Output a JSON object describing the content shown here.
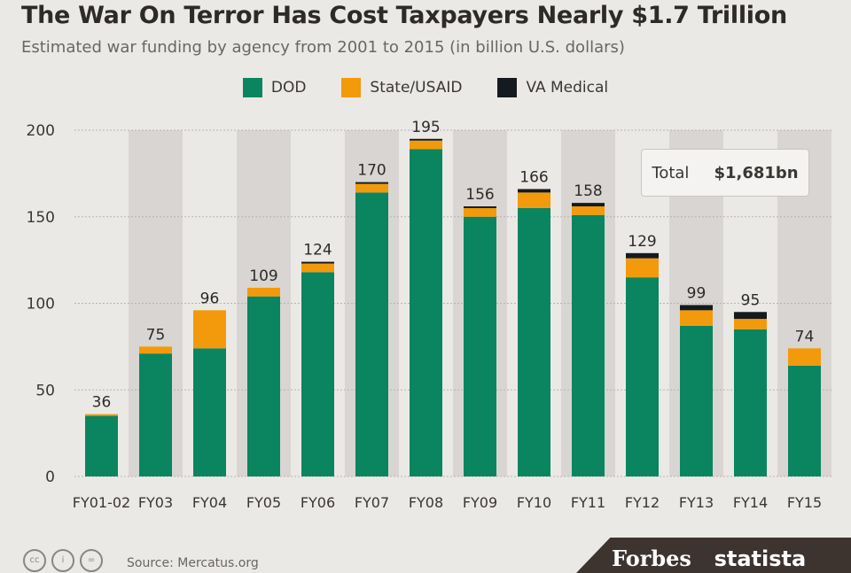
{
  "chart_data": {
    "type": "bar",
    "stacked": true,
    "title": "The War On Terror Has Cost Taxpayers Nearly $1.7 Trillion",
    "subtitle": "Estimated war funding by agency from 2001 to 2015 (in billion U.S. dollars)",
    "xlabel": "",
    "ylabel": "",
    "ylim": [
      0,
      200
    ],
    "yticks": [
      0,
      50,
      100,
      150,
      200
    ],
    "grid": true,
    "legend_position": "top-center",
    "categories": [
      "FY01-02",
      "FY03",
      "FY04",
      "FY05",
      "FY06",
      "FY07",
      "FY08",
      "FY09",
      "FY10",
      "FY11",
      "FY12",
      "FY13",
      "FY14",
      "FY15"
    ],
    "series": [
      {
        "name": "DOD",
        "color": "#0a8560",
        "values": [
          35,
          71,
          74,
          104,
          118,
          164,
          189,
          150,
          155,
          151,
          115,
          87,
          85,
          64
        ]
      },
      {
        "name": "State/USAID",
        "color": "#f29a0b",
        "values": [
          1,
          4,
          22,
          5,
          5,
          5,
          5,
          5,
          9,
          5,
          11,
          9,
          6,
          10
        ]
      },
      {
        "name": "VA Medical",
        "color": "#141a1f",
        "values": [
          0,
          0,
          0,
          0,
          1,
          1,
          1,
          1,
          2,
          2,
          3,
          3,
          4,
          0
        ]
      }
    ],
    "totals": [
      36,
      75,
      96,
      109,
      124,
      170,
      195,
      156,
      166,
      158,
      129,
      99,
      95,
      74
    ],
    "annotation": {
      "label": "Total",
      "value": "$1,681bn"
    }
  },
  "footer": {
    "source": "Source: Mercatus.org",
    "brands": [
      "Forbes",
      "statista"
    ]
  }
}
